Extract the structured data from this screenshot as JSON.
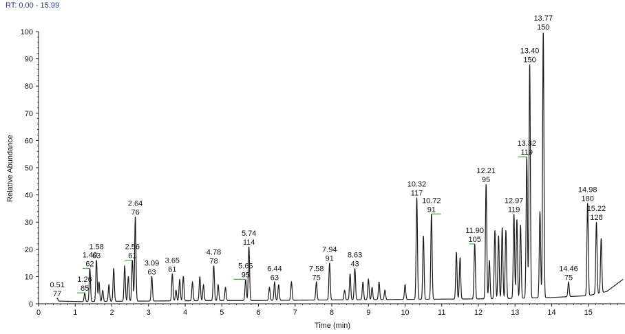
{
  "header": {
    "rt_prefix": "RT:",
    "rt_range": "0.00 - 15.99"
  },
  "chart_data": {
    "type": "line",
    "title": "",
    "xlabel": "Time (min)",
    "ylabel": "Relative Abundance",
    "xlim": [
      0,
      16
    ],
    "ylim": [
      0,
      100
    ],
    "x_ticks": [
      "0",
      "1",
      "2",
      "3",
      "4",
      "5",
      "6",
      "7",
      "8",
      "9",
      "10",
      "11",
      "12",
      "13",
      "14",
      "15"
    ],
    "y_ticks": [
      "0",
      "10",
      "20",
      "30",
      "40",
      "50",
      "60",
      "70",
      "80",
      "90",
      "100"
    ],
    "grid": false,
    "line_color": "#1a1a1a",
    "leader_color": "#3aaa35",
    "baseline": [
      [
        0.5,
        1.0
      ],
      [
        1.2,
        0.8
      ],
      [
        2.0,
        0.9
      ],
      [
        3.0,
        1.0
      ],
      [
        4.0,
        1.1
      ],
      [
        5.0,
        1.2
      ],
      [
        6.0,
        1.2
      ],
      [
        7.0,
        1.3
      ],
      [
        8.0,
        1.4
      ],
      [
        9.0,
        1.5
      ],
      [
        10.0,
        1.6
      ],
      [
        11.0,
        1.7
      ],
      [
        12.0,
        1.8
      ],
      [
        13.0,
        2.0
      ],
      [
        14.0,
        2.3
      ],
      [
        15.0,
        3.0
      ],
      [
        15.5,
        4.5
      ],
      [
        15.8,
        7.5
      ],
      [
        15.95,
        9.0
      ]
    ],
    "peaks": [
      {
        "rt": 0.51,
        "height": 2.0,
        "label": "0.51",
        "mz": "77"
      },
      {
        "rt": 1.26,
        "height": 4.0,
        "label": "1.26",
        "mz": "85"
      },
      {
        "rt": 1.4,
        "height": 13.0,
        "label": "1.40",
        "mz": "62"
      },
      {
        "rt": 1.58,
        "height": 16.0,
        "label": "1.58",
        "mz": "63"
      },
      {
        "rt": 1.65,
        "height": 8.0
      },
      {
        "rt": 1.75,
        "height": 5.0
      },
      {
        "rt": 1.92,
        "height": 7.0
      },
      {
        "rt": 2.05,
        "height": 13.0
      },
      {
        "rt": 2.35,
        "height": 14.0
      },
      {
        "rt": 2.45,
        "height": 10.0
      },
      {
        "rt": 2.56,
        "height": 16.0,
        "label": "2.56",
        "mz": "61"
      },
      {
        "rt": 2.64,
        "height": 32.0,
        "label": "2.64",
        "mz": "76"
      },
      {
        "rt": 3.09,
        "height": 10.0,
        "label": "3.09",
        "mz": "63"
      },
      {
        "rt": 3.65,
        "height": 11.0,
        "label": "3.65",
        "mz": "61"
      },
      {
        "rt": 3.75,
        "height": 5.0
      },
      {
        "rt": 3.85,
        "height": 9.0
      },
      {
        "rt": 3.95,
        "height": 10.0
      },
      {
        "rt": 4.2,
        "height": 8.0
      },
      {
        "rt": 4.4,
        "height": 10.0
      },
      {
        "rt": 4.5,
        "height": 7.0
      },
      {
        "rt": 4.78,
        "height": 14.0,
        "label": "4.78",
        "mz": "78"
      },
      {
        "rt": 4.9,
        "height": 7.0
      },
      {
        "rt": 5.1,
        "height": 6.0
      },
      {
        "rt": 5.65,
        "height": 9.0,
        "label": "5.65",
        "mz": "95"
      },
      {
        "rt": 5.74,
        "height": 21.0,
        "label": "5.74",
        "mz": "114"
      },
      {
        "rt": 6.3,
        "height": 6.0
      },
      {
        "rt": 6.44,
        "height": 8.0,
        "label": "6.44",
        "mz": "63"
      },
      {
        "rt": 6.55,
        "height": 7.0
      },
      {
        "rt": 6.9,
        "height": 8.0
      },
      {
        "rt": 7.58,
        "height": 8.0,
        "label": "7.58",
        "mz": "75"
      },
      {
        "rt": 7.94,
        "height": 15.0,
        "label": "7.94",
        "mz": "91"
      },
      {
        "rt": 8.35,
        "height": 5.0
      },
      {
        "rt": 8.5,
        "height": 11.0
      },
      {
        "rt": 8.63,
        "height": 13.0,
        "label": "8.63",
        "mz": "43"
      },
      {
        "rt": 8.85,
        "height": 8.0
      },
      {
        "rt": 9.0,
        "height": 9.0
      },
      {
        "rt": 9.1,
        "height": 6.0
      },
      {
        "rt": 9.29,
        "height": 8.0
      },
      {
        "rt": 9.45,
        "height": 5.0
      },
      {
        "rt": 10.0,
        "height": 7.0
      },
      {
        "rt": 10.32,
        "height": 39.0,
        "label": "10.32",
        "mz": "117"
      },
      {
        "rt": 10.5,
        "height": 25.0
      },
      {
        "rt": 10.72,
        "height": 33.0,
        "label": "10.72",
        "mz": "91"
      },
      {
        "rt": 11.4,
        "height": 19.0
      },
      {
        "rt": 11.5,
        "height": 17.0
      },
      {
        "rt": 11.9,
        "height": 22.0,
        "label": "11.90",
        "mz": "105"
      },
      {
        "rt": 12.21,
        "height": 44.0,
        "label": "12.21",
        "mz": "95"
      },
      {
        "rt": 12.3,
        "height": 16.0
      },
      {
        "rt": 12.45,
        "height": 27.0
      },
      {
        "rt": 12.55,
        "height": 25.0
      },
      {
        "rt": 12.65,
        "height": 28.0
      },
      {
        "rt": 12.75,
        "height": 27.0
      },
      {
        "rt": 12.97,
        "height": 33.0,
        "label": "12.97",
        "mz": "119"
      },
      {
        "rt": 13.05,
        "height": 31.0
      },
      {
        "rt": 13.15,
        "height": 29.0
      },
      {
        "rt": 13.32,
        "height": 54.0,
        "label": "13.32",
        "mz": "119"
      },
      {
        "rt": 13.4,
        "height": 88.0,
        "label": "13.40",
        "mz": "150"
      },
      {
        "rt": 13.68,
        "height": 34.0
      },
      {
        "rt": 13.77,
        "height": 100.0,
        "label": "13.77",
        "mz": "150"
      },
      {
        "rt": 14.46,
        "height": 8.0,
        "label": "14.46",
        "mz": "75"
      },
      {
        "rt": 14.98,
        "height": 37.0,
        "label": "14.98",
        "mz": "180"
      },
      {
        "rt": 15.22,
        "height": 30.0,
        "label": "15.22",
        "mz": "128"
      },
      {
        "rt": 15.35,
        "height": 24.0
      }
    ]
  }
}
